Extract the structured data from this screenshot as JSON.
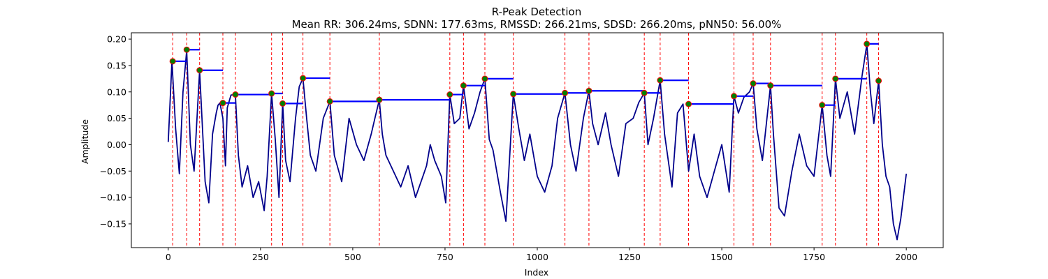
{
  "chart_data": {
    "type": "line",
    "title": "R-Peak Detection",
    "subtitle": "Mean RR: 306.24ms, SDNN: 177.63ms, RMSSD: 266.21ms, SDSD: 266.20ms, pNN50: 56.00%",
    "xlabel": "Index",
    "ylabel": "Amplitude",
    "xlim": [
      -100,
      2100
    ],
    "ylim": [
      -0.195,
      0.212
    ],
    "x_ticks": [
      0,
      250,
      500,
      750,
      1000,
      1250,
      1500,
      1750,
      2000
    ],
    "x_tick_labels": [
      "0",
      "250",
      "500",
      "750",
      "1000",
      "1250",
      "1500",
      "1750",
      "2000"
    ],
    "y_ticks": [
      -0.15,
      -0.1,
      -0.05,
      0.0,
      0.05,
      0.1,
      0.15,
      0.2
    ],
    "y_tick_labels": [
      "−0.15",
      "−0.10",
      "−0.05",
      "0.00",
      "0.05",
      "0.10",
      "0.15",
      "0.20"
    ],
    "grid": false,
    "colors": {
      "signal": "#00008b",
      "peak_line": "#ff0000",
      "rr_segment": "#0000ff",
      "peak_marker_fill": "#008000",
      "peak_marker_edge": "#ff0000"
    },
    "signal": {
      "x": [
        0,
        10,
        20,
        30,
        40,
        50,
        60,
        70,
        85,
        100,
        110,
        120,
        130,
        135,
        140,
        148,
        155,
        160,
        170,
        182,
        190,
        200,
        215,
        230,
        245,
        260,
        268,
        280,
        290,
        300,
        310,
        318,
        330,
        345,
        355,
        365,
        375,
        385,
        400,
        420,
        438,
        450,
        470,
        490,
        510,
        530,
        550,
        560,
        572,
        580,
        590,
        610,
        630,
        650,
        670,
        690,
        700,
        710,
        722,
        740,
        752,
        763,
        775,
        790,
        800,
        815,
        830,
        845,
        858,
        870,
        880,
        900,
        915,
        935,
        950,
        965,
        980,
        1000,
        1020,
        1040,
        1055,
        1075,
        1090,
        1105,
        1125,
        1140,
        1150,
        1165,
        1185,
        1200,
        1220,
        1240,
        1260,
        1275,
        1290,
        1300,
        1315,
        1333,
        1345,
        1365,
        1380,
        1395,
        1410,
        1425,
        1440,
        1460,
        1480,
        1500,
        1520,
        1533,
        1545,
        1560,
        1575,
        1585,
        1595,
        1610,
        1632,
        1640,
        1655,
        1670,
        1690,
        1710,
        1730,
        1750,
        1772,
        1785,
        1795,
        1808,
        1820,
        1840,
        1860,
        1880,
        1893,
        1903,
        1912,
        1925,
        1935,
        1945,
        1955,
        1965,
        1975,
        1985,
        2000
      ],
      "y": [
        0.005,
        0.158,
        0.03,
        -0.055,
        0.1,
        0.178,
        0.0,
        -0.05,
        0.14,
        -0.07,
        -0.11,
        0.02,
        0.06,
        0.075,
        0.079,
        0.05,
        -0.04,
        0.07,
        0.094,
        0.095,
        -0.02,
        -0.08,
        -0.04,
        -0.1,
        -0.07,
        -0.125,
        -0.06,
        0.097,
        0.01,
        -0.1,
        0.078,
        -0.03,
        -0.07,
        0.05,
        0.11,
        0.126,
        0.05,
        -0.02,
        -0.05,
        0.05,
        0.082,
        -0.02,
        -0.07,
        0.05,
        0.0,
        -0.03,
        0.02,
        0.05,
        0.085,
        0.02,
        -0.02,
        -0.05,
        -0.08,
        -0.04,
        -0.1,
        -0.06,
        -0.04,
        0.0,
        -0.03,
        -0.06,
        -0.11,
        0.095,
        0.04,
        0.05,
        0.112,
        0.03,
        0.06,
        0.1,
        0.125,
        0.01,
        -0.01,
        -0.09,
        -0.145,
        0.096,
        0.03,
        -0.03,
        0.02,
        -0.06,
        -0.09,
        -0.04,
        0.05,
        0.098,
        0.0,
        -0.05,
        0.05,
        0.102,
        0.04,
        0.0,
        0.06,
        0.0,
        -0.06,
        0.04,
        0.05,
        0.08,
        0.098,
        0.0,
        0.05,
        0.122,
        0.02,
        -0.08,
        0.06,
        0.077,
        -0.05,
        0.02,
        -0.06,
        -0.1,
        -0.05,
        0.0,
        -0.09,
        0.092,
        0.06,
        0.09,
        0.1,
        0.116,
        0.03,
        -0.03,
        0.112,
        0.02,
        -0.12,
        -0.135,
        -0.05,
        0.02,
        -0.04,
        -0.06,
        0.075,
        -0.02,
        -0.06,
        0.125,
        0.05,
        0.1,
        0.02,
        0.13,
        0.19,
        0.1,
        0.04,
        0.121,
        0.0,
        -0.06,
        -0.08,
        -0.15,
        -0.18,
        -0.14,
        -0.055
      ]
    },
    "peaks": {
      "x": [
        12,
        50,
        85,
        148,
        182,
        280,
        310,
        365,
        438,
        572,
        763,
        800,
        858,
        935,
        1075,
        1140,
        1290,
        1333,
        1410,
        1533,
        1585,
        1632,
        1772,
        1808,
        1893,
        1925
      ],
      "y": [
        0.158,
        0.18,
        0.141,
        0.079,
        0.095,
        0.097,
        0.078,
        0.126,
        0.082,
        0.085,
        0.095,
        0.112,
        0.125,
        0.096,
        0.098,
        0.102,
        0.098,
        0.122,
        0.077,
        0.092,
        0.116,
        0.112,
        0.075,
        0.125,
        0.191,
        0.121
      ]
    }
  }
}
